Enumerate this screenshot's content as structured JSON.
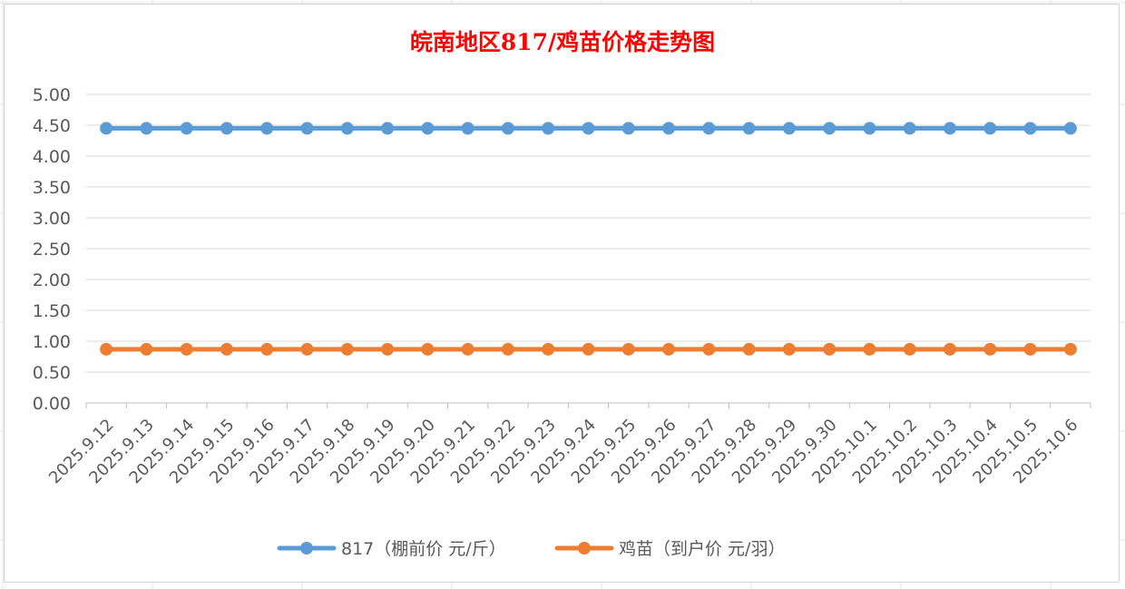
{
  "chart_data": {
    "type": "line",
    "title": "皖南地区817/鸡苗价格走势图",
    "categories": [
      "2025.9.12",
      "2025.9.13",
      "2025.9.14",
      "2025.9.15",
      "2025.9.16",
      "2025.9.17",
      "2025.9.18",
      "2025.9.19",
      "2025.9.20",
      "2025.9.21",
      "2025.9.22",
      "2025.9.23",
      "2025.9.24",
      "2025.9.25",
      "2025.9.26",
      "2025.9.27",
      "2025.9.28",
      "2025.9.29",
      "2025.9.30",
      "2025.10.1",
      "2025.10.2",
      "2025.10.3",
      "2025.10.4",
      "2025.10.5",
      "2025.10.6"
    ],
    "yticks": [
      "0.00",
      "0.50",
      "1.00",
      "1.50",
      "2.00",
      "2.50",
      "3.00",
      "3.50",
      "4.00",
      "4.50",
      "5.00"
    ],
    "ylim": [
      0,
      5
    ],
    "grid": true,
    "legend_position": "bottom",
    "series": [
      {
        "name": "817（棚前价 元/斤）",
        "color": "#5b9bd5",
        "values": [
          4.45,
          4.45,
          4.45,
          4.45,
          4.45,
          4.45,
          4.45,
          4.45,
          4.45,
          4.45,
          4.45,
          4.45,
          4.45,
          4.45,
          4.45,
          4.45,
          4.45,
          4.45,
          4.45,
          4.45,
          4.45,
          4.45,
          4.45,
          4.45,
          4.45
        ]
      },
      {
        "name": "鸡苗（到户价 元/羽）",
        "color": "#ed7d31",
        "values": [
          0.87,
          0.87,
          0.87,
          0.87,
          0.87,
          0.87,
          0.87,
          0.87,
          0.87,
          0.87,
          0.87,
          0.87,
          0.87,
          0.87,
          0.87,
          0.87,
          0.87,
          0.87,
          0.87,
          0.87,
          0.87,
          0.87,
          0.87,
          0.87,
          0.87
        ]
      }
    ]
  }
}
